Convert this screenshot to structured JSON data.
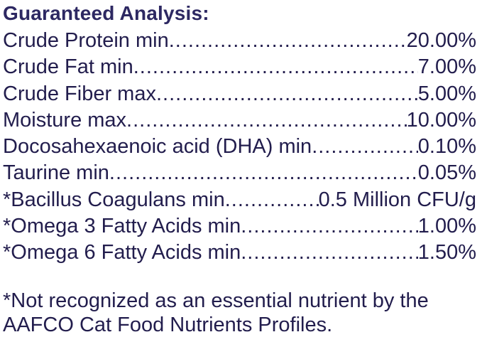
{
  "title": "Guaranteed Analysis:",
  "colors": {
    "background": "#ffffff",
    "body_text": "#221d4d",
    "title_text": "#2d2862"
  },
  "analysis": {
    "rows": [
      {
        "label": "Crude Protein min",
        "value": "20.00%"
      },
      {
        "label": "Crude Fat min",
        "value": "7.00%"
      },
      {
        "label": "Crude Fiber max",
        "value": "5.00%"
      },
      {
        "label": "Moisture max",
        "value": "10.00%"
      },
      {
        "label": "Docosahexaenoic acid (DHA) min",
        "value": "0.10%"
      },
      {
        "label": "Taurine min",
        "value": "0.05%"
      },
      {
        "label": "*Bacillus Coagulans min",
        "value": "0.5 Million CFU/g"
      },
      {
        "label": "*Omega 3 Fatty Acids min",
        "value": "1.00%"
      },
      {
        "label": "*Omega 6 Fatty Acids min",
        "value": "1.50%"
      }
    ]
  },
  "footnote": {
    "line1": "*Not recognized as an essential nutrient by the",
    "line2": "AAFCO Cat Food Nutrients Profiles."
  }
}
